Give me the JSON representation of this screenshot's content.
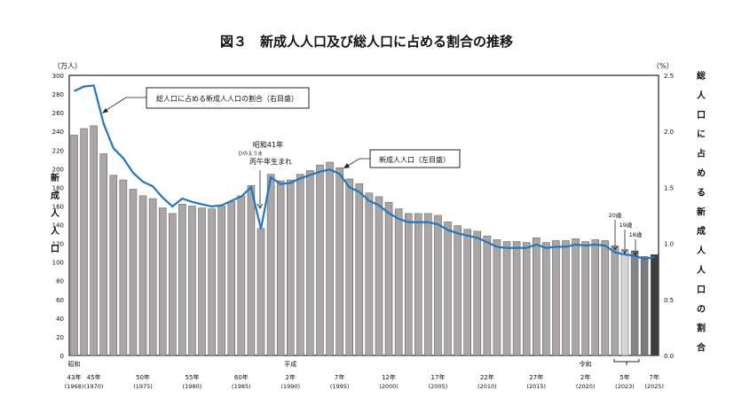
{
  "chart_data": {
    "type": "bar+line",
    "title": "図３　新成人人口及び総人口に占める割合の推移",
    "left_axis": {
      "unit": "（万人）",
      "label": "新成人人口",
      "ylim": [
        0,
        300
      ],
      "ticks": [
        0,
        20,
        40,
        60,
        80,
        100,
        120,
        140,
        160,
        180,
        200,
        220,
        240,
        260,
        280,
        300
      ]
    },
    "right_axis": {
      "unit": "（%）",
      "label": "総人口に占める新成人人口の割合",
      "ylim": [
        0,
        2.5
      ],
      "ticks": [
        "0.0",
        "0.5",
        "1.0",
        "1.5",
        "2.0",
        "2.5"
      ]
    },
    "categories": [
      "1968",
      "1969",
      "1970",
      "1971",
      "1972",
      "1973",
      "1974",
      "1975",
      "1976",
      "1977",
      "1978",
      "1979",
      "1980",
      "1981",
      "1982",
      "1983",
      "1984",
      "1985",
      "1986",
      "1987",
      "1988",
      "1989",
      "1990",
      "1991",
      "1992",
      "1993",
      "1994",
      "1995",
      "1996",
      "1997",
      "1998",
      "1999",
      "2000",
      "2001",
      "2002",
      "2003",
      "2004",
      "2005",
      "2006",
      "2007",
      "2008",
      "2009",
      "2010",
      "2011",
      "2012",
      "2013",
      "2014",
      "2015",
      "2016",
      "2017",
      "2018",
      "2019",
      "2020",
      "2021",
      "2022",
      "2023 (20歳)",
      "2023 (19歳)",
      "2023 (18歳)",
      "2024",
      "2025"
    ],
    "series": [
      {
        "name": "新成人人口（左目盛）",
        "type": "bar",
        "axis": "left",
        "values": [
          236,
          243,
          246,
          216,
          193,
          188,
          178,
          171,
          168,
          158,
          152,
          162,
          160,
          158,
          157,
          160,
          165,
          171,
          182,
          136,
          194,
          187,
          188,
          194,
          198,
          204,
          207,
          201,
          189,
          184,
          174,
          170,
          164,
          157,
          152,
          152,
          152,
          150,
          143,
          139,
          135,
          133,
          128,
          124,
          122,
          122,
          121,
          126,
          121,
          123,
          123,
          125,
          122,
          124,
          123,
          117,
          113,
          112,
          106,
          108
        ]
      },
      {
        "name": "総人口に占める新成人人口の割合（右目盛）",
        "type": "line",
        "axis": "right",
        "values": [
          2.36,
          2.4,
          2.41,
          2.07,
          1.85,
          1.76,
          1.63,
          1.55,
          1.51,
          1.41,
          1.33,
          1.4,
          1.37,
          1.35,
          1.33,
          1.34,
          1.38,
          1.42,
          1.5,
          1.13,
          1.59,
          1.53,
          1.54,
          1.58,
          1.61,
          1.64,
          1.66,
          1.62,
          1.5,
          1.46,
          1.38,
          1.34,
          1.27,
          1.22,
          1.19,
          1.19,
          1.19,
          1.17,
          1.12,
          1.09,
          1.07,
          1.05,
          1.01,
          0.97,
          0.96,
          0.96,
          0.96,
          0.99,
          0.96,
          0.97,
          0.97,
          0.99,
          0.98,
          0.99,
          0.98,
          0.92,
          0.9,
          0.89,
          0.86,
          0.88
        ]
      }
    ],
    "bar_colors": {
      "default": "#aaa6a6",
      "19": "#d6d6d6",
      "18": "#858585",
      "2024": "#7b7b7b",
      "2025": "#3e3e3e"
    },
    "line_color": "#1f77c4",
    "x_labels": [
      {
        "index": 0,
        "era": "昭和",
        "year": "43年",
        "western": "(1968)"
      },
      {
        "index": 2,
        "year": "45年",
        "western": "(1970)"
      },
      {
        "index": 7,
        "year": "50年",
        "western": "(1975)"
      },
      {
        "index": 12,
        "year": "55年",
        "western": "(1980)"
      },
      {
        "index": 17,
        "year": "60年",
        "western": "(1985)"
      },
      {
        "index": 22,
        "era": "平成",
        "year": "2年",
        "western": "(1990)"
      },
      {
        "index": 27,
        "year": "7年",
        "western": "(1995)"
      },
      {
        "index": 32,
        "year": "12年",
        "western": "(2000)"
      },
      {
        "index": 37,
        "year": "17年",
        "western": "(2005)"
      },
      {
        "index": 42,
        "year": "22年",
        "western": "(2010)"
      },
      {
        "index": 47,
        "year": "27年",
        "western": "(2015)"
      },
      {
        "index": 52,
        "era": "令和",
        "year": "2年",
        "western": "(2020)"
      },
      {
        "index": 56,
        "year": "5年",
        "western": "(2023)"
      },
      {
        "index": 59,
        "year": "7年",
        "western": "(2025)"
      }
    ],
    "annotations": {
      "ratio_box": "総人口に占める新成人人口の割合（右目盛）",
      "pop_box": "新成人人口（左目盛）",
      "hinoeuma_year": "昭和41年",
      "hinoeuma_ruby": "ひのえうま",
      "hinoeuma_text": "丙午年生まれ",
      "age20": "20歳",
      "age19": "19歳",
      "age18": "18歳"
    }
  }
}
